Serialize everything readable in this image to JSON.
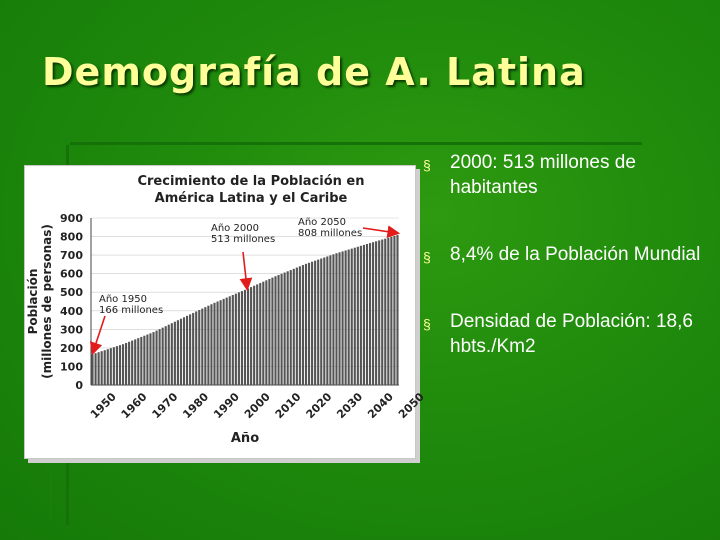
{
  "slide": {
    "title": "Demografía de A. Latina",
    "bullet_marker": "§",
    "bullets": [
      {
        "text": "2000: 513 millones de habitantes"
      },
      {
        "text": "8,4% de la Población Mundial"
      },
      {
        "text": "Densidad de Población: 18,6 hbts./Km2"
      }
    ]
  },
  "chart_data": {
    "type": "bar",
    "title_lines": [
      "Crecimiento de la Población en",
      "América Latina y el Caribe"
    ],
    "xlabel": "Año",
    "ylabel_lines": [
      "Población",
      "(millones de personas)"
    ],
    "ylim": [
      0,
      900
    ],
    "yticks": [
      0,
      100,
      200,
      300,
      400,
      500,
      600,
      700,
      800,
      900
    ],
    "xticks": [
      "1950",
      "1960",
      "1970",
      "1980",
      "1990",
      "2000",
      "2010",
      "2020",
      "2030",
      "2040",
      "2050"
    ],
    "x_start": 1950,
    "x_end": 2050,
    "series": [
      {
        "values": [
          166,
          220,
          285,
          365,
          443,
          513,
          586,
          653,
          710,
          760,
          808
        ]
      }
    ],
    "annotations": [
      {
        "year": 1950,
        "value": 166,
        "lines": [
          "Año 1950",
          "166 millones"
        ]
      },
      {
        "year": 2000,
        "value": 513,
        "lines": [
          "Año 2000",
          "513 millones"
        ]
      },
      {
        "year": 2050,
        "value": 808,
        "lines": [
          "Año 2050",
          "808 millones"
        ]
      }
    ],
    "colors": {
      "bars": "#555555",
      "arrows": "#e21b1b",
      "grid": "#cccccc"
    }
  }
}
